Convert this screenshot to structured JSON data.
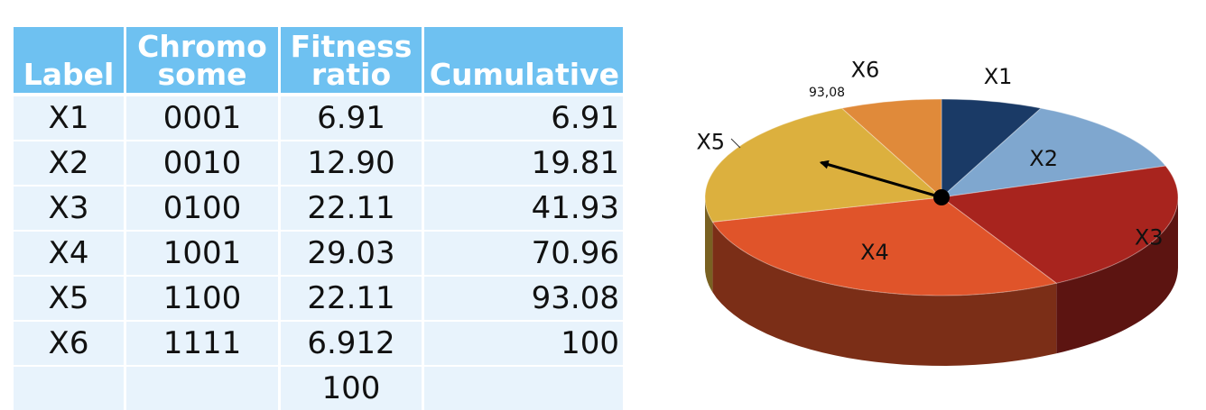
{
  "chart_data": [
    {
      "type": "table",
      "columns": [
        {
          "key": "label",
          "header": "Label"
        },
        {
          "key": "chromosome",
          "header": "Chromo some"
        },
        {
          "key": "fitness",
          "header": "Fitness ratio"
        },
        {
          "key": "cumulative",
          "header": "Cumulative"
        }
      ],
      "rows": [
        {
          "label": "X1",
          "chromosome": "0001",
          "fitness": "6.91",
          "cumulative": "6.91"
        },
        {
          "label": "X2",
          "chromosome": "0010",
          "fitness": "12.90",
          "cumulative": "19.81"
        },
        {
          "label": "X3",
          "chromosome": "0100",
          "fitness": "22.11",
          "cumulative": "41.93"
        },
        {
          "label": "X4",
          "chromosome": "1001",
          "fitness": "29.03",
          "cumulative": "70.96"
        },
        {
          "label": "X5",
          "chromosome": "1100",
          "fitness": "22.11",
          "cumulative": "93.08"
        },
        {
          "label": "X6",
          "chromosome": "1111",
          "fitness": "6.912",
          "cumulative": "100"
        },
        {
          "label": "",
          "chromosome": "",
          "fitness": "100",
          "cumulative": ""
        }
      ]
    },
    {
      "type": "pie",
      "style": "3d",
      "categories": [
        "X1",
        "X2",
        "X3",
        "X4",
        "X5",
        "X6"
      ],
      "values": [
        6.91,
        12.9,
        22.11,
        29.03,
        22.11,
        6.912
      ],
      "colors": [
        "#1a3a66",
        "#7fa7cf",
        "#a8241e",
        "#e0542a",
        "#dcb03e",
        "#e08a3a"
      ],
      "annotation": "93,08",
      "pointer_target": "X5"
    }
  ]
}
